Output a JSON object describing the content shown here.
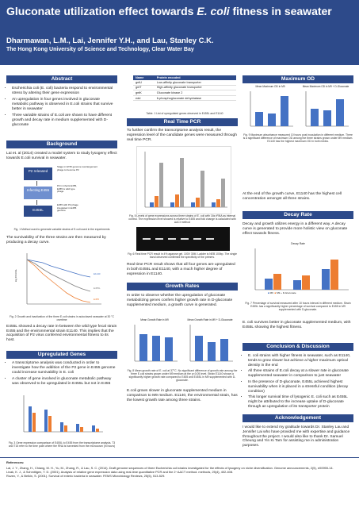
{
  "header": {
    "title_pre": "Gluconate utilization effect towards ",
    "title_italic": "E. coli",
    "title_post": " fitness in seawater",
    "authors": "Dharmawan, L.M., Lai, Jennifer Y.H., and Lau, Stanley C.K.",
    "affiliation": "The Hong Kong University of Science and Technology, Clear Water Bay"
  },
  "abstract": {
    "heading": "Abstract",
    "bullets": [
      "Escherichia coli (E. coli) bacteria respond to environmental stress by altering their gene expression",
      "An upregulation in four genes involved in gluconate metabolic pathway is observed in E.coli strains that survive better in seawater",
      "Three variable strains of E.coli are shown to have different growth and decay rate in medium supplemented with D-gluconate"
    ]
  },
  "background": {
    "heading": "Background",
    "intro": "Lai et. al (2014) created a model system to study lysogeny effect towards E.coli survival in seawater.",
    "diagram": {
      "p2": "P2 released",
      "p2_note": "Stage in E745 genome rearrangement phage to become P2",
      "infecting": "Infecting E455",
      "infecting_note": "P2 in infects E455, E455 is wild type phage",
      "e455l": "E455L",
      "e455l_note": "E455 with P2 phage integrated in E455 genome"
    },
    "fig1_caption": "Fig. 1 Method used to generate variable strains of E.coli used in the experiments",
    "survival_text": "The survivability of the three strains are then measured by producing a decay curve.",
    "fig2_caption": "Fig. 2 Growth and inactivation of the three E.coli strains in autoclaved seawater at 30 °C overtime",
    "e455l_text": "E455L showed a decay rate in-between the wild type fecal strain E455 and the environmental strain E1140. This implies that the acquisition of P2 virus conferred environmental fitness to its host."
  },
  "decay_plot": {
    "ylabel": "log CFU/mL",
    "legend": [
      "E1140",
      "E455",
      "E455L"
    ]
  },
  "upregulated": {
    "heading": "Upregulated Genes",
    "bullets": [
      "A transcriptome analysis was conducted in order to investigate how the addition of the P2 gene in E455 genome could increase survivability in E. coli",
      "A cluster of gene involved in gluconate metabolic pathway was observed to be upregulated in E455L but not in E455"
    ],
    "fig3_caption": "Fig. 3 Gene expression comparison of E455L to E455 from the transcriptome analysis. T3 and T15 refer to the time point where the RNA is harvested from the microcosm (in hours)"
  },
  "gene_table": {
    "col_name": "Name",
    "col_protein": "Protein encoded",
    "rows": [
      {
        "name": "gntU",
        "protein": "Low-affinity gluconate transporter"
      },
      {
        "name": "gntT",
        "protein": "High-affinity gluconate transporter"
      },
      {
        "name": "gntK",
        "protein": "Gluconate kinase 2"
      },
      {
        "name": "edd",
        "protein": "6-phosphogluconate dehydratase"
      }
    ],
    "caption": "Table. 1 List of upregulated genes observed in E455L and E1140"
  },
  "pcr": {
    "heading": "Real Time PCR",
    "intro": "To further confirm the transcriptome analysis result, the expression level of the candidate genes were measured through real time PCR.",
    "fig4_caption": "Fig. 5 Levels of gene expressions across three strains of E. coli with 16s rRNA as internal control. The expression level showed is relative to E455 and fold change is calculated with ΔΔCt method",
    "fig5_caption": "Fig. 6 Real time PCR result in 4% agarose gel. 100V 30M. Ladder is NEB 100bp. The single band observed confirmed the specificity of the primers.",
    "result_text": "Real time PCR result shows that all four genes are upregulated in both E455L and E1140, with a much higher degree of expression in E1140."
  },
  "growth": {
    "heading": "Growth Rates",
    "intro": "In order to observe whether the upregulation of gluconate metabolizing genes confers higher growth rate in D-gluconate supplemented medium, a growth curve is generated.",
    "plot_a_title": "Mean Growth Rate in M9",
    "plot_b_title": "Mean Growth Rate in M9 + D-Gluconate",
    "fig_caption": "Fig. 8 Mean growth rate of E. coli at 37°C. No significant difference of growth rate among the three E.coli strains grown under M9 medium at the p<0.05 level. Strain E1140 shows a significantly higher growth rate compared to E455 and E455L in M9 supplemented with D-gluconate.",
    "result_text": "E.coli grows slower in gluconate supplemented medium in comparison to M9 medium. E1140, the environmental strain, has the lowest growth rate among three strains."
  },
  "maxod": {
    "heading": "Maximum OD",
    "plot_a_title": "Mean Maximum OD in M9",
    "plot_b_title": "Mean Maximum OD in M9 + D-Gluconate",
    "fig_caption": "Fig. 9 Maximum absorbance measured 10 hours post inoculation in different medium. There is a significant difference of maximum OD among the three strains grown under M9 medium. E1140 has the highest maximum OD in both media.",
    "result_text": "At the end of the growth curve, E1140 has the highest cell concentration amongst all three strains."
  },
  "decay": {
    "heading": "Decay Rate",
    "intro": "Decay and growth utilizes energy in a different way. A decay curve is generated to provide more holistic view on gluconate effect towards fitness.",
    "plot_title": "Decay Rate",
    "legend": [
      "M9",
      "M9 + D-Gluconate"
    ],
    "fig_caption": "Fig. 7 Percentage of survival measured after 10 hours interval in different medium. Strain E455L has a significantly higher percentage of survival compared to E455 in M9 supplemented with D-gluconate.",
    "result_text": "E. coli survives better in gluconate supplemented medium, with E455L showing the highest fitness."
  },
  "conclusion": {
    "heading": "Conclusion & Discussion",
    "bullets": [
      "E. coli strains with higher fitness in seawater, such as E1140, tends to grow slower but achieve a higher maximum optical density in the end",
      "All three strains of E.coli decay at a slower rate in gluconate supplemented seawater in comparison to just seawater",
      "In the presence of D-gluconate, E455L achieved highest survivability when it is placed in a stressful condition (decay condition)",
      "This longer survival time of lysogenic E. coli such as E455L might be attributed to the increase uptake of D-gluconate through an upregulation of its transporter protein"
    ]
  },
  "ack": {
    "heading": "Acknowledgement",
    "text": "I would like to extend my gratitude towards Dr. Stanley Lau and Jennifer Lai who have provided me with expertise and guidance throughout the project. I would also like to thank Dr. Samuel Cheung and Yin Ki Tam for assisting me in administration purposes."
  },
  "references": {
    "heading": "References:",
    "items": [
      "Lai, J. Y., Zhang, H., Chiang, M. H., Yu, M., Zhang, R., & Lau, S. C. (2014). Draft genome sequences of three Escherichia coli strains investigated for the effects of lysogeny on niche diversification. Genome announcements, 2(5), e00955-14.",
      "Livak, K. J., & Schmittgen, T. D. (2001). Analysis of relative gene expression data using real-time quantitative PCR and the 2−ΔΔCT method. methods, 25(4), 402-408.",
      "Rozen, Y., & Belkin, S. (2001). Survival of enteric bacteria in seawater. FEMS Microbiology Reviews, 25(5), 513-529."
    ]
  },
  "colors": {
    "primary": "#2d4a8a",
    "bar_a": "#4472c4",
    "bar_b": "#ed7d31",
    "bar_c": "#a5a5a5"
  }
}
